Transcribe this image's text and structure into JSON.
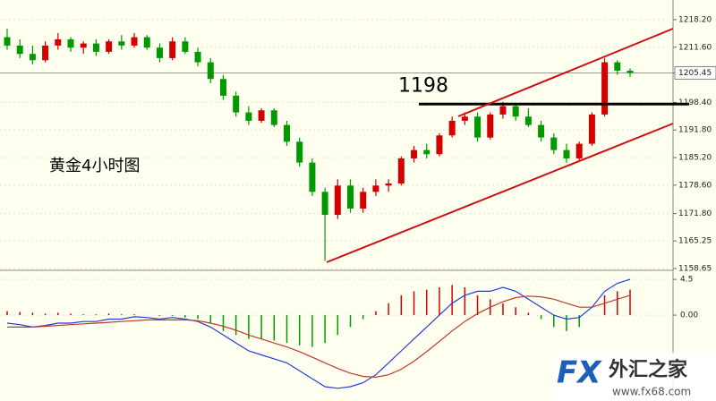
{
  "chart_data": [
    {
      "type": "candlestick",
      "annotation": "黄金4小时图",
      "level": 1198,
      "up_color": "#d40000",
      "down_color": "#009a00",
      "open": [
        1214,
        1212,
        1210,
        1208.5,
        1212,
        1213.5,
        1211.5,
        1212.5,
        1210.5,
        1213,
        1212,
        1214,
        1211.5,
        1209,
        1213,
        1210.5,
        1208,
        1204,
        1200,
        1196,
        1194,
        1196.5,
        1193,
        1189,
        1184,
        1177,
        1171.5,
        1178.5,
        1173,
        1177,
        1178.5,
        1179,
        1185,
        1187,
        1186,
        1190.5,
        1194,
        1195,
        1190,
        1195.5,
        1197.5,
        1195,
        1193,
        1190,
        1187,
        1185,
        1188.5,
        1195.5,
        1208,
        1206
      ],
      "high": [
        1216,
        1213.5,
        1212,
        1213,
        1215,
        1214,
        1213,
        1213.5,
        1213.5,
        1214.5,
        1215,
        1214.5,
        1212.5,
        1214,
        1214,
        1211.5,
        1209,
        1205,
        1201,
        1197.5,
        1197,
        1197,
        1194,
        1190,
        1185,
        1178,
        1180,
        1180,
        1178,
        1180,
        1180,
        1185.5,
        1188,
        1188.5,
        1191,
        1195,
        1196,
        1196,
        1196,
        1198.5,
        1198,
        1197,
        1194,
        1191,
        1188.5,
        1189,
        1196,
        1209,
        1208.5,
        1206.5
      ],
      "low": [
        1211,
        1209,
        1207.5,
        1208,
        1211,
        1210.5,
        1210,
        1209.5,
        1210,
        1211,
        1211.5,
        1211,
        1208,
        1208.5,
        1210,
        1207,
        1203,
        1199,
        1195,
        1193,
        1193.5,
        1192.5,
        1188,
        1183,
        1176,
        1160.5,
        1170.5,
        1172,
        1172,
        1176,
        1177,
        1178.5,
        1184,
        1185,
        1185.5,
        1190,
        1193,
        1189,
        1189.5,
        1194.5,
        1194,
        1192.5,
        1189,
        1186,
        1184,
        1184.5,
        1188,
        1195,
        1205,
        1204.5
      ],
      "close": [
        1212,
        1210,
        1208.5,
        1212,
        1213.5,
        1211.5,
        1212.5,
        1210.5,
        1213,
        1212,
        1214,
        1211.5,
        1209,
        1213,
        1210.5,
        1208,
        1204,
        1200,
        1196,
        1194,
        1196.5,
        1193,
        1189,
        1184,
        1177,
        1171.5,
        1178.5,
        1173,
        1177,
        1178.5,
        1179,
        1185,
        1187,
        1186,
        1190.5,
        1194,
        1195,
        1190,
        1195.5,
        1197.5,
        1195,
        1193,
        1190,
        1187,
        1185,
        1188.5,
        1195.5,
        1208,
        1206,
        1205.45
      ],
      "ylim": [
        1158.65,
        1222.9
      ],
      "yticks": [
        {
          "value": 1218.2,
          "label": "1218.20"
        },
        {
          "value": 1211.6,
          "label": "1211.60"
        },
        1205.45,
        {
          "value": 1198.4,
          "label": "1198.40"
        },
        {
          "value": 1191.8,
          "label": "1191.80"
        },
        {
          "value": 1185.2,
          "label": "1185.20"
        },
        {
          "value": 1178.6,
          "label": "1178.60"
        },
        {
          "value": 1171.8,
          "label": "1171.80"
        },
        1165.25,
        1158.65
      ],
      "current_price_tick": 2,
      "grid": true
    },
    {
      "type": "macd",
      "histogram": [
        0.5,
        0.4,
        0.3,
        0.2,
        0.3,
        0.2,
        0.1,
        0.1,
        0.2,
        0.1,
        0.1,
        0,
        -0.1,
        -0.1,
        -0.3,
        -0.5,
        -1,
        -2,
        -2.5,
        -3,
        -3,
        -3.2,
        -3.5,
        -3.8,
        -4,
        -3.5,
        -2.5,
        -1.5,
        -0.5,
        0.5,
        1.5,
        2.5,
        3,
        3.2,
        3.5,
        3.8,
        3.5,
        2.5,
        2,
        1.5,
        1,
        0.3,
        -0.5,
        -1.5,
        -2,
        -1.5,
        0,
        2.5,
        3,
        3.2
      ],
      "positive_color": "#d40000",
      "negative_color": "#009a00",
      "series": [
        {
          "color": "#1f3fd8",
          "values": [
            -1,
            -1.2,
            -1.5,
            -1.3,
            -1,
            -1,
            -0.8,
            -0.8,
            -0.5,
            -0.5,
            -0.2,
            -0.3,
            -0.5,
            -0.3,
            -0.5,
            -0.8,
            -1.5,
            -2.5,
            -3.5,
            -4.5,
            -5,
            -5.5,
            -6,
            -7,
            -8,
            -9,
            -9.2,
            -9,
            -8.5,
            -7.5,
            -6,
            -4.5,
            -3,
            -1.5,
            0,
            1.5,
            2.5,
            3,
            3,
            3.5,
            3,
            2,
            1,
            0,
            -0.5,
            -0.3,
            1,
            3,
            4,
            4.5
          ]
        },
        {
          "color": "#c0392b",
          "values": [
            -1.5,
            -1.5,
            -1.5,
            -1.4,
            -1.3,
            -1.2,
            -1.1,
            -1,
            -0.9,
            -0.8,
            -0.7,
            -0.6,
            -0.6,
            -0.6,
            -0.6,
            -0.7,
            -1,
            -1.4,
            -1.9,
            -2.5,
            -3,
            -3.5,
            -4,
            -4.6,
            -5.3,
            -6,
            -6.7,
            -7.3,
            -7.7,
            -7.8,
            -7.5,
            -6.8,
            -5.8,
            -4.6,
            -3.3,
            -2,
            -0.8,
            0.2,
            1,
            1.7,
            2.2,
            2.4,
            2.3,
            2,
            1.5,
            1,
            1,
            1.5,
            2,
            2.5
          ]
        }
      ],
      "ylim": [
        -10.8,
        5.3
      ],
      "yticks": [
        4.5,
        {
          "value": 0,
          "label": "0.00"
        }
      ],
      "grid": true
    }
  ],
  "watermark": {
    "logo": "FX",
    "name": "外汇之家",
    "url": "www.fx68.com"
  }
}
